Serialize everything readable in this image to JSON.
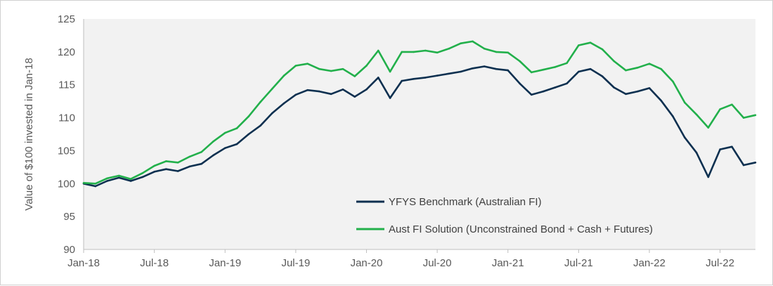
{
  "chart_data": {
    "type": "line",
    "title": "",
    "xlabel": "",
    "ylabel": "Value of $100 invested in Jan-18",
    "ylim": [
      90,
      125
    ],
    "yticks": [
      90,
      95,
      100,
      105,
      110,
      115,
      120,
      125
    ],
    "xticks": [
      "Jan-18",
      "Jul-18",
      "Jan-19",
      "Jul-19",
      "Jan-20",
      "Jul-20",
      "Jan-21",
      "Jul-21",
      "Jan-22",
      "Jul-22"
    ],
    "grid": false,
    "plot_background": "#f2f2f2",
    "legend_position": "bottom-right",
    "x": [
      "Jan-18",
      "Feb-18",
      "Mar-18",
      "Apr-18",
      "May-18",
      "Jun-18",
      "Jul-18",
      "Aug-18",
      "Sep-18",
      "Oct-18",
      "Nov-18",
      "Dec-18",
      "Jan-19",
      "Feb-19",
      "Mar-19",
      "Apr-19",
      "May-19",
      "Jun-19",
      "Jul-19",
      "Aug-19",
      "Sep-19",
      "Oct-19",
      "Nov-19",
      "Dec-19",
      "Jan-20",
      "Feb-20",
      "Mar-20",
      "Apr-20",
      "May-20",
      "Jun-20",
      "Jul-20",
      "Aug-20",
      "Sep-20",
      "Oct-20",
      "Nov-20",
      "Dec-20",
      "Jan-21",
      "Feb-21",
      "Mar-21",
      "Apr-21",
      "May-21",
      "Jun-21",
      "Jul-21",
      "Aug-21",
      "Sep-21",
      "Oct-21",
      "Nov-21",
      "Dec-21",
      "Jan-22",
      "Feb-22",
      "Mar-22",
      "Apr-22",
      "May-22",
      "Jun-22",
      "Jul-22",
      "Aug-22",
      "Sep-22",
      "Oct-22"
    ],
    "series": [
      {
        "name": "YFYS Benchmark (Australian FI)",
        "color": "#0d3050",
        "values": [
          100.0,
          99.6,
          100.4,
          100.9,
          100.4,
          101.0,
          101.8,
          102.2,
          101.9,
          102.6,
          103.0,
          104.3,
          105.4,
          106.0,
          107.5,
          108.8,
          110.7,
          112.2,
          113.5,
          114.2,
          114.0,
          113.6,
          114.3,
          113.2,
          114.3,
          116.1,
          113.0,
          115.6,
          115.9,
          116.1,
          116.4,
          116.7,
          117.0,
          117.5,
          117.8,
          117.4,
          117.2,
          115.2,
          113.5,
          114.0,
          114.6,
          115.2,
          117.0,
          117.4,
          116.3,
          114.6,
          113.6,
          114.0,
          114.5,
          112.6,
          110.2,
          107.0,
          104.7,
          101.0,
          105.2,
          105.6,
          102.8,
          103.2
        ]
      },
      {
        "name": "Aust FI Solution (Unconstrained Bond + Cash + Futures)",
        "color": "#22b04b",
        "values": [
          100.1,
          100.0,
          100.8,
          101.2,
          100.7,
          101.6,
          102.7,
          103.4,
          103.2,
          104.1,
          104.8,
          106.4,
          107.7,
          108.4,
          110.2,
          112.4,
          114.4,
          116.4,
          117.9,
          118.2,
          117.4,
          117.1,
          117.4,
          116.3,
          117.9,
          120.2,
          117.0,
          120.0,
          120.0,
          120.2,
          119.9,
          120.5,
          121.3,
          121.6,
          120.5,
          120.0,
          119.9,
          118.6,
          116.9,
          117.3,
          117.7,
          118.3,
          121.0,
          121.4,
          120.4,
          118.6,
          117.2,
          117.6,
          118.2,
          117.4,
          115.5,
          112.3,
          110.5,
          108.5,
          111.3,
          112.0,
          110.0,
          110.4
        ]
      }
    ]
  }
}
